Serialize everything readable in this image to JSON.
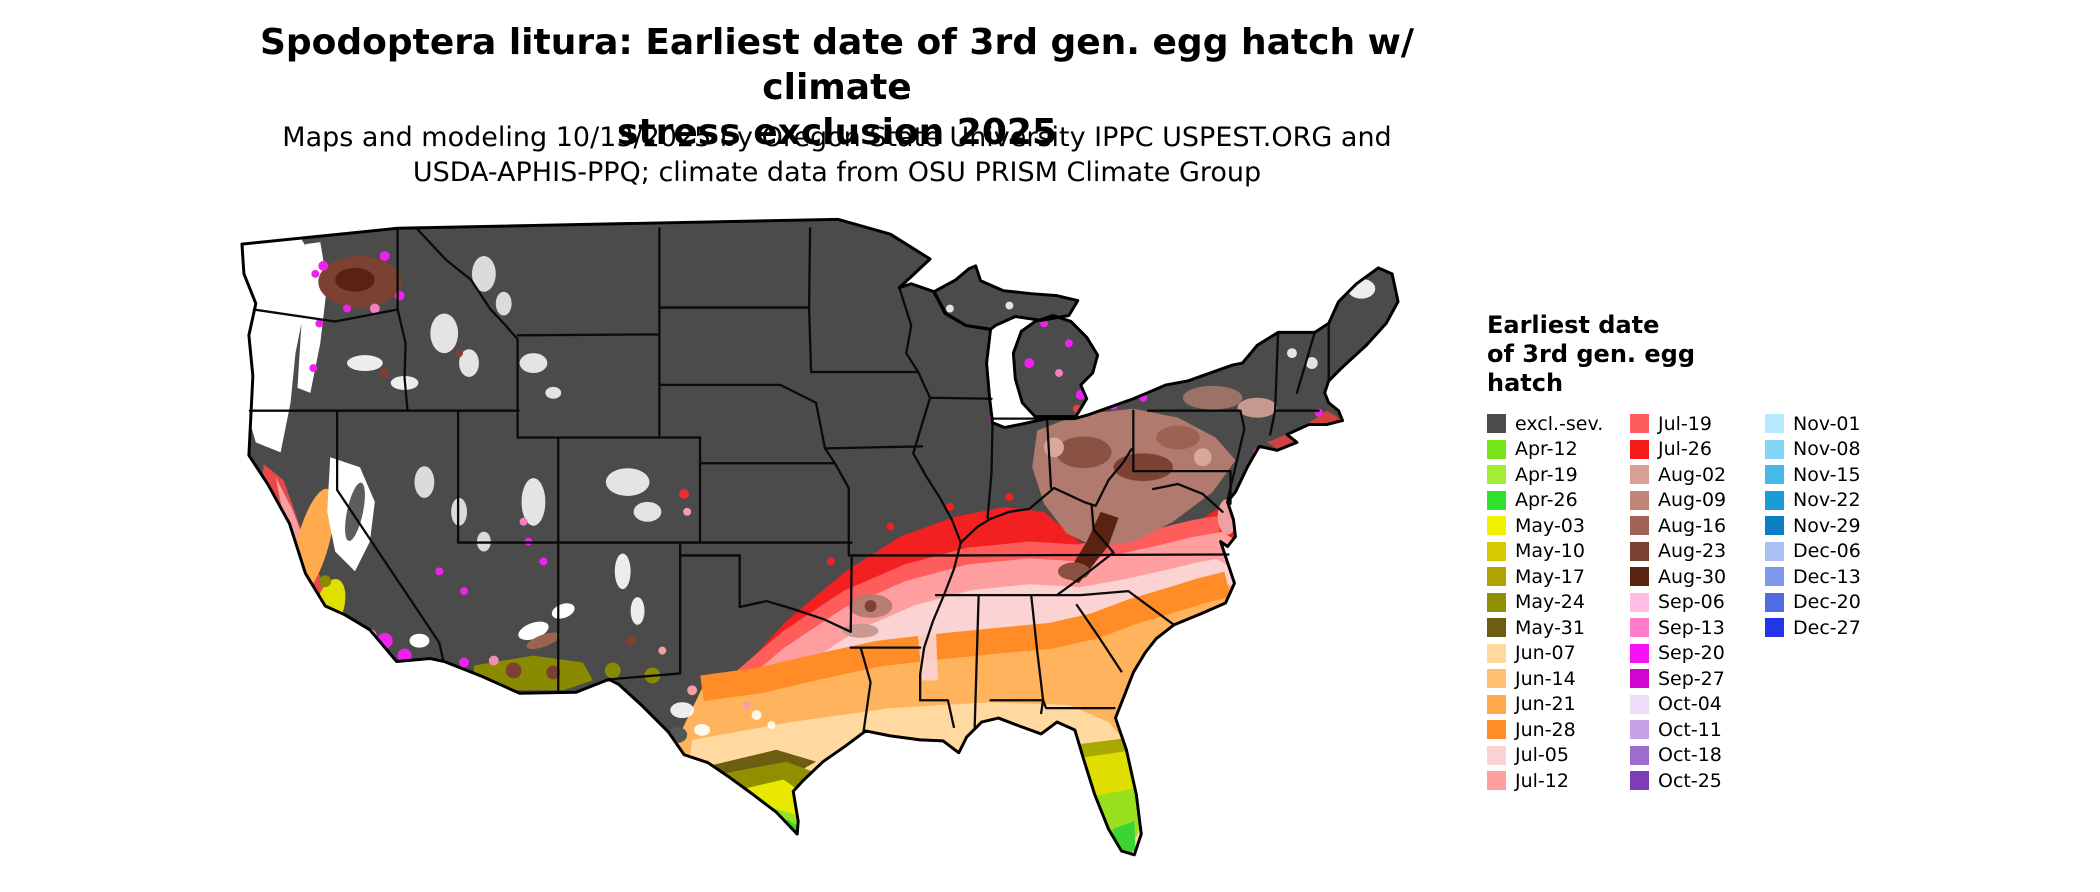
{
  "title": {
    "line1": "Spodoptera litura: Earliest date of 3rd gen. egg hatch w/ climate",
    "line2": "stress exclusion 2025"
  },
  "subtitle": {
    "line1": "Maps and modeling 10/13/2025 by Oregon State University IPPC USPEST.ORG and",
    "line2": "USDA-APHIS-PPQ; climate data from OSU PRISM Climate Group"
  },
  "legend": {
    "title_lines": [
      "Earliest date",
      "of 3rd gen. egg",
      "hatch"
    ],
    "columns": [
      [
        {
          "label": "excl.-sev.",
          "color": "#4b4b4b"
        },
        {
          "label": "Apr-12",
          "color": "#77e319"
        },
        {
          "label": "Apr-19",
          "color": "#a4ed37"
        },
        {
          "label": "Apr-26",
          "color": "#2ee22e"
        },
        {
          "label": "May-03",
          "color": "#f0f000"
        },
        {
          "label": "May-10",
          "color": "#d6c900"
        },
        {
          "label": "May-17",
          "color": "#b0a400"
        },
        {
          "label": "May-24",
          "color": "#8f8f00"
        },
        {
          "label": "May-31",
          "color": "#6b5e10"
        },
        {
          "label": "Jun-07",
          "color": "#ffd9a0"
        },
        {
          "label": "Jun-14",
          "color": "#ffc071"
        },
        {
          "label": "Jun-21",
          "color": "#ffa94d"
        },
        {
          "label": "Jun-28",
          "color": "#ff8c26"
        },
        {
          "label": "Jul-05",
          "color": "#fbd3d3"
        },
        {
          "label": "Jul-12",
          "color": "#ff9e9e"
        }
      ],
      [
        {
          "label": "Jul-19",
          "color": "#ff5c5c"
        },
        {
          "label": "Jul-26",
          "color": "#f51b1b"
        },
        {
          "label": "Aug-02",
          "color": "#d8a097"
        },
        {
          "label": "Aug-09",
          "color": "#c08478"
        },
        {
          "label": "Aug-16",
          "color": "#a06355"
        },
        {
          "label": "Aug-23",
          "color": "#7c4132"
        },
        {
          "label": "Aug-30",
          "color": "#5a2210"
        },
        {
          "label": "Sep-06",
          "color": "#ffbde5"
        },
        {
          "label": "Sep-13",
          "color": "#ff7ccb"
        },
        {
          "label": "Sep-20",
          "color": "#f512f5"
        },
        {
          "label": "Sep-27",
          "color": "#cf06cf"
        },
        {
          "label": "Oct-04",
          "color": "#eedcf8"
        },
        {
          "label": "Oct-11",
          "color": "#c5a3e4"
        },
        {
          "label": "Oct-18",
          "color": "#9c6dca"
        },
        {
          "label": "Oct-25",
          "color": "#7d3db6"
        }
      ],
      [
        {
          "label": "Nov-01",
          "color": "#b5e9fb"
        },
        {
          "label": "Nov-08",
          "color": "#82d5f5"
        },
        {
          "label": "Nov-15",
          "color": "#47b9e9"
        },
        {
          "label": "Nov-22",
          "color": "#1a9cd8"
        },
        {
          "label": "Nov-29",
          "color": "#0b7ec2"
        },
        {
          "label": "Dec-06",
          "color": "#aabff2"
        },
        {
          "label": "Dec-13",
          "color": "#7e99ea"
        },
        {
          "label": "Dec-20",
          "color": "#4f6de1"
        },
        {
          "label": "Dec-27",
          "color": "#2236e9"
        }
      ]
    ]
  }
}
